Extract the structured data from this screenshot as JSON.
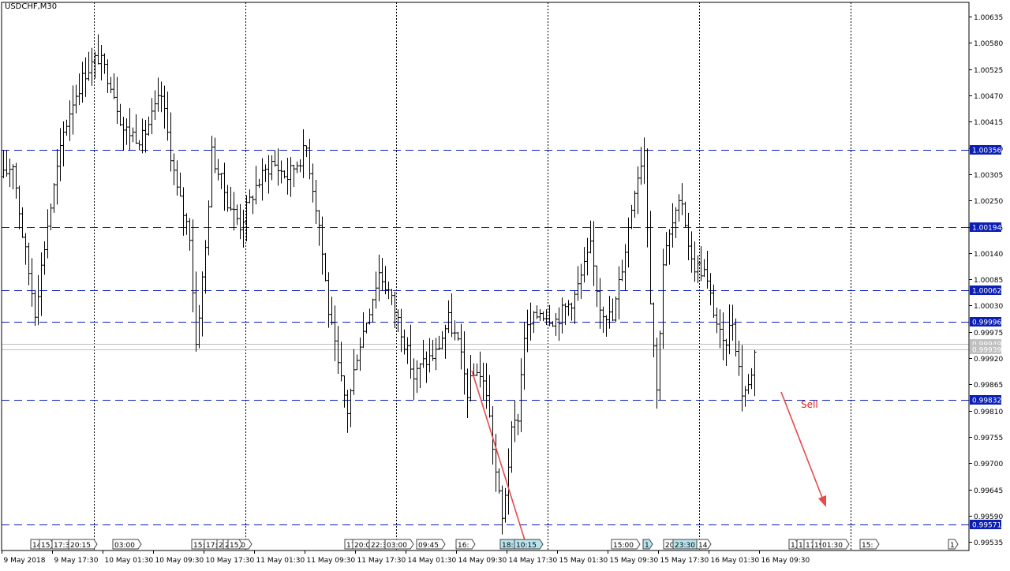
{
  "chart_data": {
    "type": "candlestick",
    "title": "USDCHF,M30",
    "symbol": "USDCHF",
    "timeframe": "M30",
    "ylim": [
      0.99517,
      1.00665
    ],
    "y_ticks": [
      "1.00635",
      "1.00580",
      "1.00525",
      "1.00470",
      "1.00415",
      "1.00360",
      "1.00305",
      "1.00250",
      "1.00195",
      "1.00140",
      "1.00085",
      "1.00030",
      "0.99975",
      "0.99920",
      "0.99865",
      "0.99810",
      "0.99755",
      "0.99700",
      "0.99645",
      "0.99590",
      "0.99535"
    ],
    "x_labels": [
      "9 May 2018",
      "9 May 17:30",
      "10 May 01:30",
      "10 May 09:30",
      "10 May 17:30",
      "11 May 01:30",
      "11 May 09:30",
      "11 May 17:30",
      "14 May 01:30",
      "14 May 09:30",
      "14 May 17:30",
      "15 May 01:30",
      "15 May 09:30",
      "15 May 17:30",
      "16 May 01:30",
      "16 May 09:30"
    ],
    "levels": [
      {
        "value": 1.00356,
        "label": "1.00356"
      },
      {
        "value": 1.00194,
        "label": "1.00194"
      },
      {
        "value": 1.00062,
        "label": "1.00062"
      },
      {
        "value": 0.99996,
        "label": "0.99996"
      },
      {
        "value": 0.99832,
        "label": "0.99832"
      },
      {
        "value": 0.99571,
        "label": "0.99571"
      }
    ],
    "bid": 0.99939,
    "bid_label": "0.99939",
    "ask": 0.99949,
    "ask_label": "0.99949",
    "annotation": {
      "text": "Sell",
      "color": "#e31a1c"
    },
    "event_markers": [
      {
        "label": "14",
        "highlight": false
      },
      {
        "label": "15",
        "highlight": false
      },
      {
        "label": "17:3",
        "highlight": false
      },
      {
        "label": "20:15",
        "highlight": false
      },
      {
        "label": "03:00",
        "highlight": false
      },
      {
        "label": "15:",
        "highlight": false
      },
      {
        "label": "17:3",
        "highlight": false
      },
      {
        "label": "2",
        "highlight": false
      },
      {
        "label": "21:00",
        "highlight": false
      },
      {
        "label": "15",
        "highlight": false
      },
      {
        "label": "17:0",
        "highlight": false
      },
      {
        "label": "20:0",
        "highlight": false
      },
      {
        "label": "22:30",
        "highlight": false
      },
      {
        "label": "03:00",
        "highlight": false
      },
      {
        "label": "09:45",
        "highlight": false
      },
      {
        "label": "16:",
        "highlight": false
      },
      {
        "label": "18:30",
        "highlight": true
      },
      {
        "label": "10:15",
        "highlight": true
      },
      {
        "label": "15:00",
        "highlight": false
      },
      {
        "label": "1",
        "highlight": true
      },
      {
        "label": "20:00",
        "highlight": false
      },
      {
        "label": "23:30",
        "highlight": true
      },
      {
        "label": "14",
        "highlight": false
      },
      {
        "label": "1",
        "highlight": false
      },
      {
        "label": "16",
        "highlight": false
      },
      {
        "label": "17",
        "highlight": false
      },
      {
        "label": "19:00",
        "highlight": false
      },
      {
        "label": "01:30",
        "highlight": false
      },
      {
        "label": "15:",
        "highlight": false
      },
      {
        "label": "1",
        "highlight": false
      }
    ],
    "trend_anchors": [
      [
        0,
        1.003
      ],
      [
        3,
        1.0033
      ],
      [
        6,
        1.0018
      ],
      [
        10,
        1.0002
      ],
      [
        14,
        1.002
      ],
      [
        19,
        1.0039
      ],
      [
        22,
        1.0046
      ],
      [
        26,
        1.0052
      ],
      [
        30,
        1.0055
      ],
      [
        34,
        1.005
      ],
      [
        38,
        1.004
      ],
      [
        44,
        1.0038
      ],
      [
        50,
        1.0047
      ],
      [
        55,
        1.0027
      ],
      [
        59,
        1.0018
      ],
      [
        61,
        0.9995
      ],
      [
        64,
        1.0015
      ],
      [
        66,
        1.0035
      ],
      [
        71,
        1.0025
      ],
      [
        75,
        1.002
      ],
      [
        80,
        1.0028
      ],
      [
        85,
        1.0033
      ],
      [
        90,
        1.003
      ],
      [
        96,
        1.0036
      ],
      [
        100,
        1.002
      ],
      [
        103,
        1.0002
      ],
      [
        106,
        0.999
      ],
      [
        109,
        0.9981
      ],
      [
        112,
        0.9993
      ],
      [
        115,
        1.0
      ],
      [
        119,
        1.001
      ],
      [
        122,
        1.0006
      ],
      [
        126,
        0.9998
      ],
      [
        130,
        0.9988
      ],
      [
        133,
        0.9991
      ],
      [
        137,
        0.9993
      ],
      [
        141,
        1.0
      ],
      [
        144,
        0.9995
      ],
      [
        147,
        0.9985
      ],
      [
        150,
        0.999
      ],
      [
        153,
        0.9985
      ],
      [
        156,
        0.9968
      ],
      [
        158,
        0.9958
      ],
      [
        161,
        0.9976
      ],
      [
        163,
        0.998
      ],
      [
        165,
        0.9997
      ],
      [
        170,
        1.0002
      ],
      [
        175,
        1.0
      ],
      [
        181,
        1.0005
      ],
      [
        186,
        1.0015
      ],
      [
        189,
        1.0003
      ],
      [
        193,
        1.0
      ],
      [
        197,
        1.0015
      ],
      [
        200,
        1.0028
      ],
      [
        203,
        1.0036
      ],
      [
        205,
        1.0005
      ],
      [
        207,
        0.9985
      ],
      [
        209,
        1.0012
      ],
      [
        212,
        1.002
      ],
      [
        215,
        1.0025
      ],
      [
        218,
        1.0012
      ],
      [
        222,
        1.001
      ],
      [
        225,
        1.0002
      ],
      [
        228,
        0.9994
      ],
      [
        231,
        1.0
      ],
      [
        234,
        0.9985
      ],
      [
        236,
        0.9986
      ],
      [
        238,
        0.9993
      ]
    ]
  }
}
